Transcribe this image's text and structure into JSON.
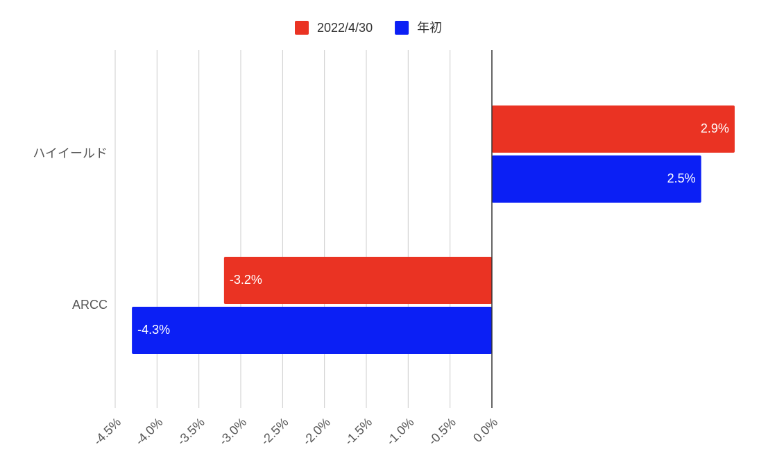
{
  "chart_data": {
    "type": "bar",
    "orientation": "horizontal",
    "categories": [
      "ハイイールド",
      "ARCC"
    ],
    "series": [
      {
        "name": "2022/4/30",
        "color": "#ea3323",
        "values": [
          2.9,
          -3.2
        ],
        "value_labels": [
          "2.9%",
          "-3.2%"
        ]
      },
      {
        "name": "年初",
        "color": "#0b1ff5",
        "values": [
          2.5,
          -4.3
        ],
        "value_labels": [
          "2.5%",
          "-4.3%"
        ]
      }
    ],
    "xlim": [
      -4.5,
      3.0
    ],
    "xticks": [
      {
        "value": -4.5,
        "label": "-4.5%"
      },
      {
        "value": -4.0,
        "label": "-4.0%"
      },
      {
        "value": -3.5,
        "label": "-3.5%"
      },
      {
        "value": -3.0,
        "label": "-3.0%"
      },
      {
        "value": -2.5,
        "label": "-2.5%"
      },
      {
        "value": -2.0,
        "label": "-2.0%"
      },
      {
        "value": -1.5,
        "label": "-1.5%"
      },
      {
        "value": -1.0,
        "label": "-1.0%"
      },
      {
        "value": -0.5,
        "label": "-0.5%"
      },
      {
        "value": 0,
        "label": "0.0%"
      }
    ],
    "grid": true,
    "legend": "top"
  }
}
